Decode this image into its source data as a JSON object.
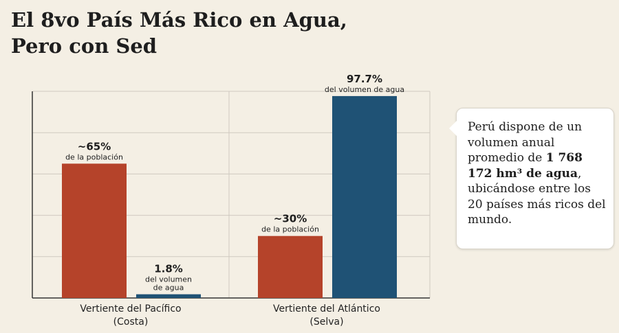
{
  "title": {
    "line1": "El 8vo País Más Rico en Agua,",
    "line2": "Pero con Sed"
  },
  "colors": {
    "population": "#b5432a",
    "water": "#1f5275",
    "grid": "#cfcac0",
    "axis": "#333333"
  },
  "chart_data": {
    "type": "bar",
    "categories": [
      [
        "Vertiente del Pacífico",
        "(Costa)"
      ],
      [
        "Vertiente del Atlántico",
        "(Selva)"
      ]
    ],
    "ylim": [
      0,
      100
    ],
    "grid": true,
    "series": [
      {
        "values": [
          65,
          30
        ],
        "labels": [
          "~65%",
          "~30%"
        ],
        "sublabels": [
          [
            "de la población"
          ],
          [
            "de la población"
          ]
        ],
        "color": "#b5432a"
      },
      {
        "values": [
          1.8,
          97.7
        ],
        "labels": [
          "1.8%",
          "97.7%"
        ],
        "sublabels": [
          [
            "del volumen",
            "de agua"
          ],
          [
            "del volumen de agua"
          ]
        ],
        "color": "#1f5275"
      }
    ]
  },
  "callout": {
    "text_before": "Perú dispone de un volumen anual promedio de ",
    "text_bold": "1 768 172 hm³ de agua",
    "text_after": ", ubicándose entre los 20 países más ricos del mundo."
  }
}
